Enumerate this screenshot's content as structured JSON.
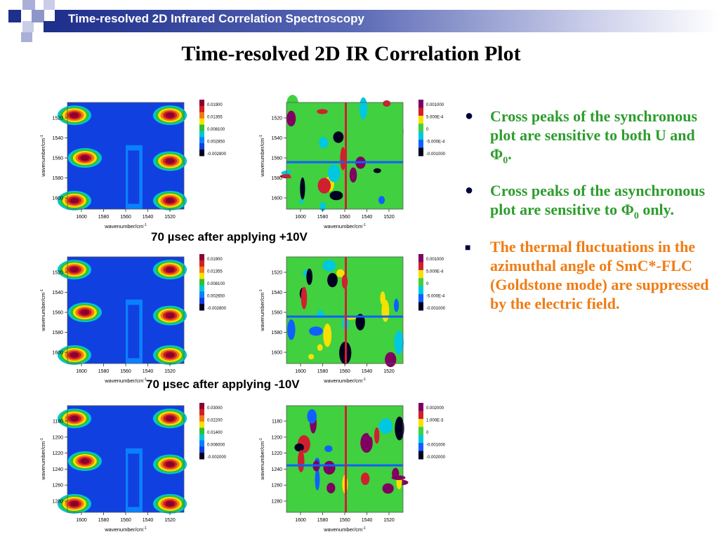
{
  "header": {
    "title": "Time-resolved 2D Infrared Correlation Spectroscopy"
  },
  "slide_title": "Time-resolved 2D IR Correlation Plot",
  "captions": {
    "row1": "70 µsec after applying +10V",
    "row2": "70 µsec after applying -10V"
  },
  "bullets": [
    {
      "prefix": "Cross peaks of the synchronous plot are sensitive to both U and Φ",
      "sub": "0",
      "suffix": ".",
      "color": "green",
      "marker": "●"
    },
    {
      "prefix": "Cross peaks of the asynchronous plot are sensitive to Φ",
      "sub": "0",
      "suffix": " only.",
      "color": "green",
      "marker": "●"
    },
    {
      "prefix": "The thermal fluctuations in the azimuthal angle of SmC*-FLC (Goldstone mode) are suppressed by the electric field.",
      "sub": "",
      "suffix": "",
      "color": "orange",
      "marker": "■"
    }
  ],
  "colors": {
    "header_dark": "#1e2f8c",
    "green_text": "#2e9d2e",
    "orange_text": "#f07c15"
  },
  "chart_data": [
    {
      "type": "heatmap",
      "kind": "synchronous",
      "xlabel": "wavenumber/cm",
      "xlabel_sup": "-1",
      "ylabel": "wavenumber/cm",
      "ylabel_sup": "-1",
      "xticks": [
        "1600",
        "1580",
        "1560",
        "1540",
        "1520"
      ],
      "yticks": [
        "1520",
        "1540",
        "1560",
        "1580",
        "1600"
      ],
      "legend": [
        "0.01900",
        "0.01355",
        "0.008100",
        "0.002850",
        "-0.002800"
      ]
    },
    {
      "type": "heatmap",
      "kind": "asynchronous",
      "xlabel": "wavenumber/cm",
      "xlabel_sup": "-1",
      "ylabel": "wavenumber/cm",
      "ylabel_sup": "-1",
      "xticks": [
        "1600",
        "1580",
        "1560",
        "1540",
        "1520"
      ],
      "yticks": [
        "1520",
        "1540",
        "1560",
        "1580",
        "1600"
      ],
      "legend": [
        "0.001000",
        "5.000E-4",
        "0",
        "-5.000E-4",
        "-0.001000"
      ]
    },
    {
      "type": "heatmap",
      "kind": "synchronous",
      "xlabel": "wavenumber/cm",
      "xlabel_sup": "-1",
      "ylabel": "wavenumber/cm",
      "ylabel_sup": "-1",
      "xticks": [
        "1600",
        "1580",
        "1560",
        "1540",
        "1520"
      ],
      "yticks": [
        "1520",
        "1540",
        "1560",
        "1580",
        "1600"
      ],
      "legend": [
        "0.01900",
        "0.01355",
        "0.008100",
        "0.002650",
        "-0.002800"
      ]
    },
    {
      "type": "heatmap",
      "kind": "asynchronous",
      "xlabel": "wavenumber/cm",
      "xlabel_sup": "-1",
      "ylabel": "wavenumber/cm",
      "ylabel_sup": "-1",
      "xticks": [
        "1600",
        "1580",
        "1560",
        "1540",
        "1520"
      ],
      "yticks": [
        "1520",
        "1540",
        "1560",
        "1580",
        "1600"
      ],
      "legend": [
        "0.001000",
        "5.000E-4",
        "0",
        "-5.000E-4",
        "-0.001000"
      ]
    },
    {
      "type": "heatmap",
      "kind": "synchronous",
      "xlabel": "wavenumber/cm",
      "xlabel_sup": "-1",
      "ylabel": "wavenumber/cm",
      "ylabel_sup": "-1",
      "xticks": [
        "1600",
        "1580",
        "1560",
        "1540",
        "1520"
      ],
      "yticks": [
        "1180",
        "1200",
        "1220",
        "1240",
        "1260",
        "1280"
      ],
      "legend": [
        "0.03000",
        "0.02200",
        "0.01400",
        "0.006000",
        "-0.002000"
      ]
    },
    {
      "type": "heatmap",
      "kind": "asynchronous",
      "xlabel": "wavenumber/cm",
      "xlabel_sup": "-1",
      "ylabel": "wavenumber/cm",
      "ylabel_sup": "-1",
      "xticks": [
        "1600",
        "1580",
        "1560",
        "1540",
        "1520"
      ],
      "yticks": [
        "1180",
        "1200",
        "1220",
        "1240",
        "1260",
        "1280"
      ],
      "legend": [
        "0.002000",
        "1.000E-3",
        "0",
        "-0.001000",
        "-0.002000"
      ]
    }
  ]
}
